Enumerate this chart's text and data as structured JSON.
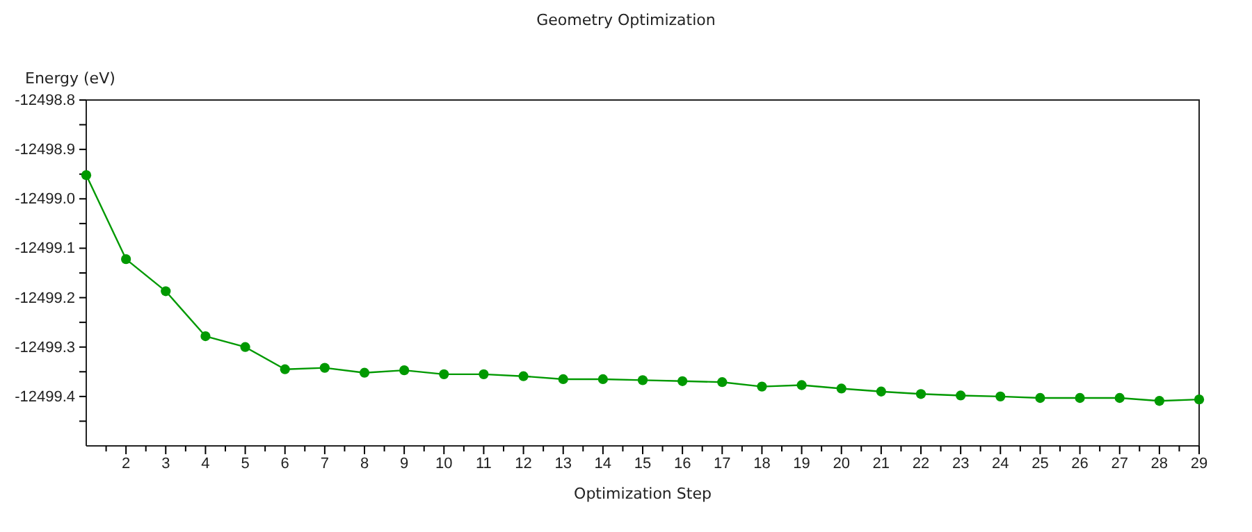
{
  "chart_data": {
    "type": "line",
    "title": "Geometry Optimization",
    "xlabel": "Optimization Step",
    "ylabel": "Energy (eV)",
    "x": [
      1,
      2,
      3,
      4,
      5,
      6,
      7,
      8,
      9,
      10,
      11,
      12,
      13,
      14,
      15,
      16,
      17,
      18,
      19,
      20,
      21,
      22,
      23,
      24,
      25,
      26,
      27,
      28,
      29
    ],
    "series": [
      {
        "color": "#009900",
        "values": [
          -12498.952,
          -12499.122,
          -12499.187,
          -12499.278,
          -12499.3,
          -12499.345,
          -12499.342,
          -12499.352,
          -12499.347,
          -12499.355,
          -12499.355,
          -12499.359,
          -12499.365,
          -12499.365,
          -12499.367,
          -12499.369,
          -12499.371,
          -12499.38,
          -12499.377,
          -12499.384,
          -12499.39,
          -12499.395,
          -12499.398,
          -12499.4,
          -12499.403,
          -12499.403,
          -12499.403,
          -12499.409,
          -12499.406
        ]
      }
    ],
    "xlim": [
      1,
      29
    ],
    "xticks": [
      {
        "value": 1.5,
        "label": null
      },
      2,
      {
        "value": 2.5,
        "label": null
      },
      3,
      {
        "value": 3.5,
        "label": null
      },
      4,
      {
        "value": 4.5,
        "label": null
      },
      5,
      {
        "value": 5.5,
        "label": null
      },
      6,
      {
        "value": 6.5,
        "label": null
      },
      7,
      {
        "value": 7.5,
        "label": null
      },
      8,
      {
        "value": 8.5,
        "label": null
      },
      9,
      {
        "value": 9.5,
        "label": null
      },
      10,
      {
        "value": 10.5,
        "label": null
      },
      11,
      {
        "value": 11.5,
        "label": null
      },
      12,
      {
        "value": 12.5,
        "label": null
      },
      13,
      {
        "value": 13.5,
        "label": null
      },
      14,
      {
        "value": 14.5,
        "label": null
      },
      15,
      {
        "value": 15.5,
        "label": null
      },
      16,
      {
        "value": 16.5,
        "label": null
      },
      17,
      {
        "value": 17.5,
        "label": null
      },
      18,
      {
        "value": 18.5,
        "label": null
      },
      19,
      {
        "value": 19.5,
        "label": null
      },
      20,
      {
        "value": 20.5,
        "label": null
      },
      21,
      {
        "value": 21.5,
        "label": null
      },
      22,
      {
        "value": 22.5,
        "label": null
      },
      23,
      {
        "value": 23.5,
        "label": null
      },
      24,
      {
        "value": 24.5,
        "label": null
      },
      25,
      {
        "value": 25.5,
        "label": null
      },
      26,
      {
        "value": 26.5,
        "label": null
      },
      27,
      {
        "value": 27.5,
        "label": null
      },
      28,
      {
        "value": 28.5,
        "label": null
      },
      29
    ],
    "ylim": [
      -12499.5,
      -12498.8
    ],
    "yticks": [
      {
        "value": -12499.45,
        "label": null
      },
      -12499.4,
      {
        "value": -12499.35,
        "label": null
      },
      -12499.3,
      {
        "value": -12499.25,
        "label": null
      },
      -12499.2,
      {
        "value": -12499.15,
        "label": null
      },
      -12499.1,
      {
        "value": -12499.05,
        "label": null
      },
      {
        "value": -12499.0,
        "label": "-12499.0"
      },
      {
        "value": -12498.95,
        "label": null
      },
      -12498.9,
      {
        "value": -12498.85,
        "label": null
      },
      -12498.8
    ],
    "grid": false,
    "marker": "circle",
    "line_style": "solid"
  }
}
